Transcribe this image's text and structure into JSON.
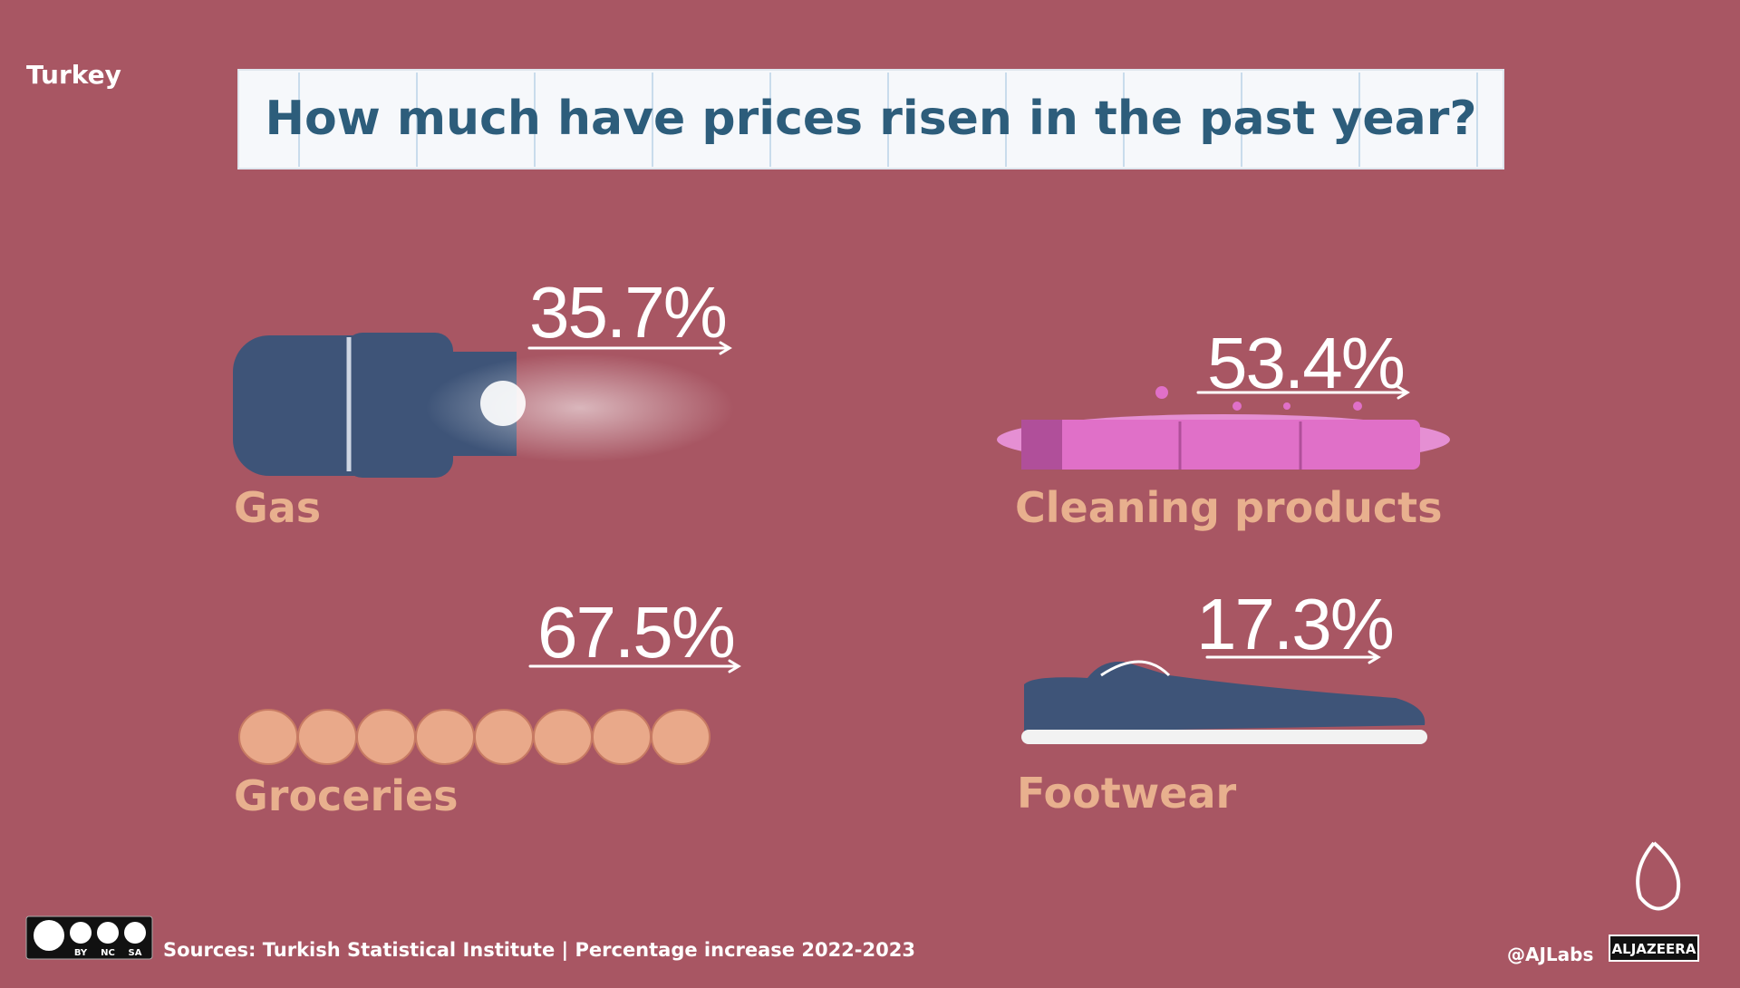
{
  "header": {
    "region": "Turkey",
    "title": "How much have prices risen in the past year?"
  },
  "items": [
    {
      "label": "Gas",
      "value": "35.7%"
    },
    {
      "label": "Cleaning products",
      "value": "53.4%"
    },
    {
      "label": "Groceries",
      "value": "67.5%"
    },
    {
      "label": "Footwear",
      "value": "17.3%"
    }
  ],
  "footer": {
    "license": [
      "BY",
      "NC",
      "SA"
    ],
    "sources": "Sources: Turkish Statistical Institute | Percentage increase 2022-2023",
    "handle": "@AJLabs",
    "logo": "ALJAZEERA"
  }
}
